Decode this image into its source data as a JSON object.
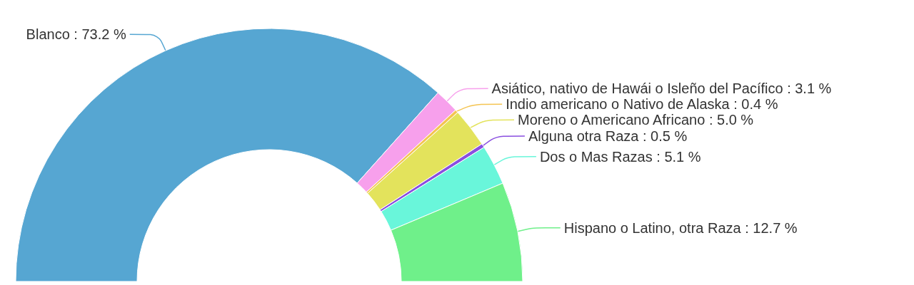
{
  "chart_data": {
    "type": "donut",
    "categories": [
      "Blanco",
      "Asiático, nativo de Hawái o Isleño del Pacífico",
      "Indio americano o Nativo de Alaska",
      "Moreno o Americano Africano",
      "Alguna otra Raza",
      "Dos o Mas Razas",
      "Hispano o Latino, otra Raza"
    ],
    "values": [
      73.2,
      3.1,
      0.4,
      5.0,
      0.5,
      5.1,
      12.7
    ],
    "value_labels": [
      "73.2 %",
      "3.1 %",
      "0.4 %",
      "5.0 %",
      "0.5 %",
      "5.1 %",
      "12.7 %"
    ],
    "colors": [
      "#56a6d2",
      "#f7a0ec",
      "#f4c452",
      "#e3e35c",
      "#8a4fe0",
      "#69f6da",
      "#6ff08a"
    ],
    "legend": false
  }
}
